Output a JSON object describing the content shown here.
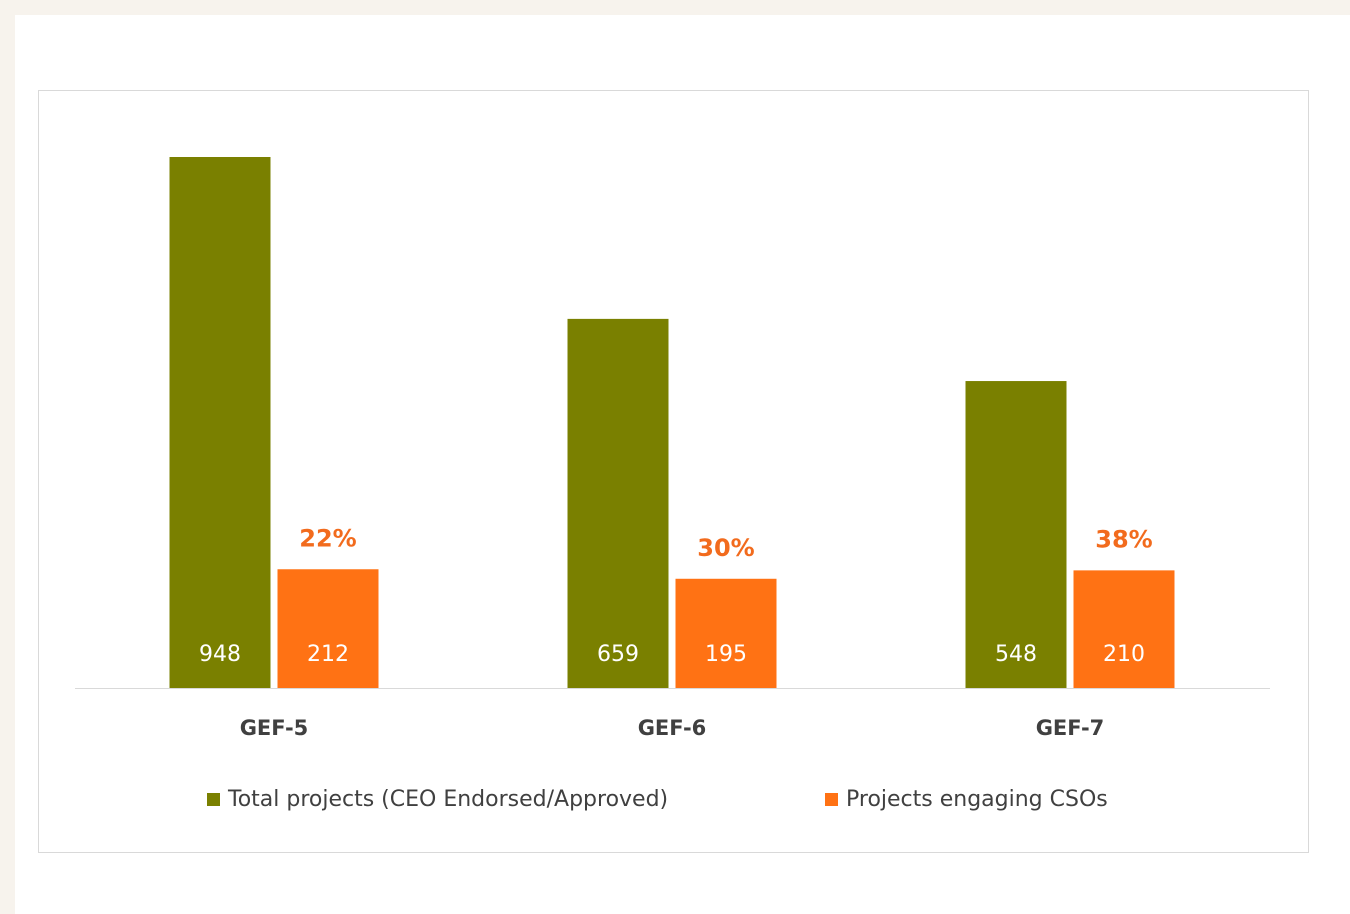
{
  "chart_data": {
    "type": "bar",
    "categories": [
      "GEF-5",
      "GEF-6",
      "GEF-7"
    ],
    "series": [
      {
        "name": "Total projects (CEO Endorsed/Approved)",
        "color": "#7a8000",
        "values": [
          948,
          659,
          548
        ]
      },
      {
        "name": "Projects engaging CSOs",
        "color": "#ff7214",
        "values": [
          212,
          195,
          210
        ]
      }
    ],
    "annotations": [
      "22%",
      "30%",
      "38%"
    ],
    "annotation_color": "#f26b1d",
    "legend": "bottom"
  }
}
